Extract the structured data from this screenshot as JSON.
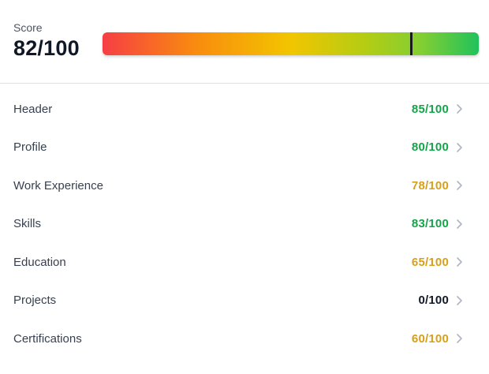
{
  "score_panel": {
    "label": "Score",
    "value": "82/100",
    "score_percent": 82,
    "marker_color": "#1a1a1a",
    "gradient_stops": [
      "#f63e44 0%",
      "#f98c0e 25%",
      "#f2c500 50%",
      "#b3cd14 70%",
      "#82ce33 85%",
      "#20c25c 100%"
    ]
  },
  "categories": [
    {
      "label": "Header",
      "value": "85/100",
      "color": "#16a34a"
    },
    {
      "label": "Profile",
      "value": "80/100",
      "color": "#16a34a"
    },
    {
      "label": "Work Experience",
      "value": "78/100",
      "color": "#d6a01d"
    },
    {
      "label": "Skills",
      "value": "83/100",
      "color": "#16a34a"
    },
    {
      "label": "Education",
      "value": "65/100",
      "color": "#d6a01d"
    },
    {
      "label": "Projects",
      "value": "0/100",
      "color": "#111827"
    },
    {
      "label": "Certifications",
      "value": "60/100",
      "color": "#d6a01d"
    }
  ],
  "icons": {
    "chevron_right_color": "#aeb4bf"
  }
}
